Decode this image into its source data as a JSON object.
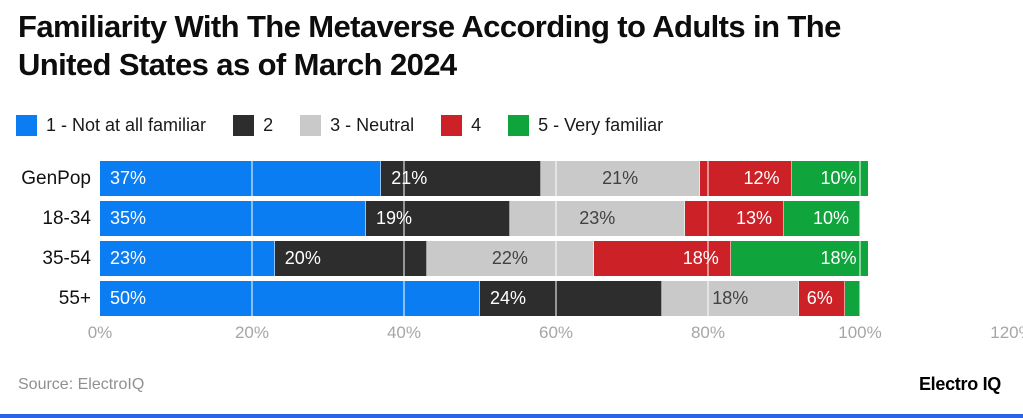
{
  "chart_data": {
    "type": "bar",
    "stacked": true,
    "orientation": "horizontal",
    "title": "Familiarity With The Metaverse According to Adults in The United States as of March 2024",
    "categories": [
      "GenPop",
      "18-34",
      "35-54",
      "55+"
    ],
    "series": [
      {
        "name": "1 - Not at all familiar",
        "color": "#0b7df2",
        "values": [
          37,
          35,
          23,
          50
        ]
      },
      {
        "name": "2",
        "color": "#2d2d2d",
        "values": [
          21,
          19,
          20,
          24
        ]
      },
      {
        "name": "3 - Neutral",
        "color": "#c9c9c9",
        "values": [
          21,
          23,
          22,
          18
        ]
      },
      {
        "name": "4",
        "color": "#cc2127",
        "values": [
          12,
          13,
          18,
          6
        ]
      },
      {
        "name": "5 - Very familiar",
        "color": "#10a43c",
        "values": [
          10,
          10,
          18,
          2
        ]
      }
    ],
    "x_ticks": [
      "0%",
      "20%",
      "40%",
      "60%",
      "80%",
      "100%",
      "120%"
    ],
    "xlim": [
      0,
      120
    ],
    "gridline_values": [
      20,
      40,
      60,
      80,
      100
    ],
    "value_suffix": "%",
    "min_label_value": 5,
    "legend_position": "top",
    "grid": true
  },
  "legend": [
    {
      "label": "1 - Not at all familiar",
      "color": "#0b7df2"
    },
    {
      "label": "2",
      "color": "#2d2d2d"
    },
    {
      "label": "3 - Neutral",
      "color": "#c9c9c9"
    },
    {
      "label": "4",
      "color": "#cc2127"
    },
    {
      "label": "5 - Very familiar",
      "color": "#10a43c"
    }
  ],
  "footer": {
    "source": "Source: ElectroIQ",
    "brand": "Electro IQ"
  },
  "colors": {
    "accent_bottom_bar": "#2b63e8",
    "axis_text": "#a6a6a6",
    "source_text": "#909090",
    "gray_segment_text": "#424242"
  }
}
